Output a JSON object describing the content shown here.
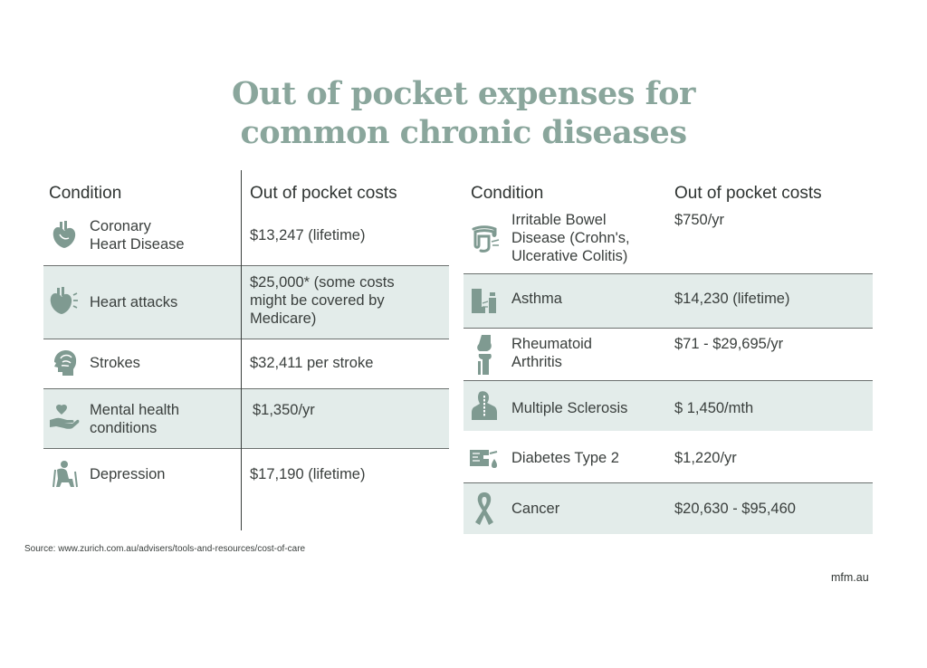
{
  "title_line1": "Out of pocket expenses for",
  "title_line2": "common chronic diseases",
  "left_table": {
    "header_condition": "Condition",
    "header_costs": "Out of pocket costs",
    "rows": [
      {
        "condition": [
          "Coronary",
          "Heart Disease"
        ],
        "cost": [
          "$13,247 (lifetime)"
        ],
        "icon": "heart-organ-icon"
      },
      {
        "condition": [
          "Heart attacks"
        ],
        "cost": [
          "$25,000* (some costs",
          "might be covered by",
          "Medicare)"
        ],
        "icon": "heart-attack-icon"
      },
      {
        "condition": [
          "Strokes"
        ],
        "cost": [
          "$32,411 per stroke"
        ],
        "icon": "brain-head-icon"
      },
      {
        "condition": [
          "Mental health",
          "conditions"
        ],
        "cost": [
          "$1,350/yr"
        ],
        "icon": "hand-heart-icon"
      },
      {
        "condition": [
          "Depression"
        ],
        "cost": [
          "$17,190 (lifetime)"
        ],
        "icon": "depressed-person-icon"
      }
    ]
  },
  "right_table": {
    "header_condition": "Condition",
    "header_costs": "Out of pocket costs",
    "rows": [
      {
        "condition": [
          "Irritable Bowel",
          "Disease (Crohn's,",
          "Ulcerative Colitis)"
        ],
        "cost": [
          "$750/yr"
        ],
        "icon": "intestine-icon"
      },
      {
        "condition": [
          "Asthma"
        ],
        "cost": [
          "$14,230 (lifetime)"
        ],
        "icon": "inhaler-icon"
      },
      {
        "condition": [
          "Rheumatoid",
          "Arthritis"
        ],
        "cost": [
          "$71 - $29,695/yr"
        ],
        "icon": "knee-joint-icon"
      },
      {
        "condition": [
          "Multiple Sclerosis"
        ],
        "cost": [
          "$ 1,450/mth"
        ],
        "icon": "spine-person-icon"
      },
      {
        "condition": [
          "Diabetes Type 2"
        ],
        "cost": [
          "$1,220/yr"
        ],
        "icon": "glucose-meter-icon"
      },
      {
        "condition": [
          "Cancer"
        ],
        "cost": [
          "$20,630 - $95,460"
        ],
        "icon": "ribbon-icon"
      }
    ]
  },
  "source_text": "Source:  www.zurich.com.au/advisers/tools-and-resources/cost-of-care",
  "brand": "mfm.au",
  "colors": {
    "title": "#8aa69c",
    "icon": "#7f9a91",
    "shade": "#e3ecea",
    "text": "#3a3f3d"
  }
}
